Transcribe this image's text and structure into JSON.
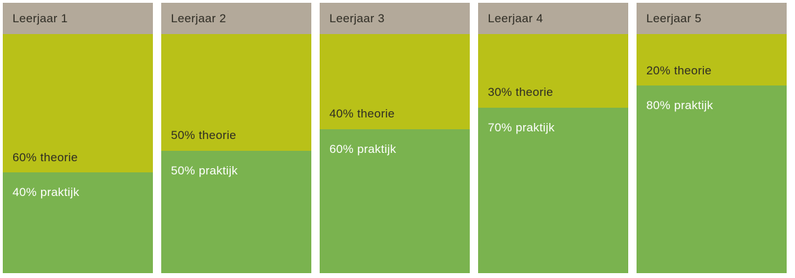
{
  "colors": {
    "page_bg": "#ffffff",
    "header_bg": "#b3a99a",
    "theorie_bg": "#b9c118",
    "praktijk_bg": "#7ab34f",
    "dark_text": "#2e2c24",
    "light_text": "#ffffff"
  },
  "columns": [
    {
      "header": "Leerjaar 1",
      "theorie_pct": 60,
      "praktijk_pct": 40,
      "theorie_label": "60% theorie",
      "praktijk_label": "40% praktijk"
    },
    {
      "header": "Leerjaar 2",
      "theorie_pct": 50,
      "praktijk_pct": 50,
      "theorie_label": "50% theorie",
      "praktijk_label": "50% praktijk"
    },
    {
      "header": "Leerjaar 3",
      "theorie_pct": 40,
      "praktijk_pct": 60,
      "theorie_label": "40% theorie",
      "praktijk_label": "60% praktijk"
    },
    {
      "header": "Leerjaar 4",
      "theorie_pct": 30,
      "praktijk_pct": 70,
      "theorie_label": "30% theorie",
      "praktijk_label": "70% praktijk"
    },
    {
      "header": "Leerjaar 5",
      "theorie_pct": 20,
      "praktijk_pct": 80,
      "theorie_label": "20% theorie",
      "praktijk_label": "80% praktijk"
    }
  ],
  "chart_data": {
    "type": "bar",
    "stacked": true,
    "orientation": "vertical",
    "categories": [
      "Leerjaar 1",
      "Leerjaar 2",
      "Leerjaar 3",
      "Leerjaar 4",
      "Leerjaar 5"
    ],
    "series": [
      {
        "name": "theorie",
        "values": [
          60,
          50,
          40,
          30,
          20
        ],
        "color": "#b9c118"
      },
      {
        "name": "praktijk",
        "values": [
          40,
          50,
          60,
          70,
          80
        ],
        "color": "#7ab34f"
      }
    ],
    "value_unit": "%",
    "ylim": [
      0,
      100
    ],
    "grid": false,
    "legend_position": "none",
    "axes_visible": false,
    "data_labels_inside_bars": true
  }
}
